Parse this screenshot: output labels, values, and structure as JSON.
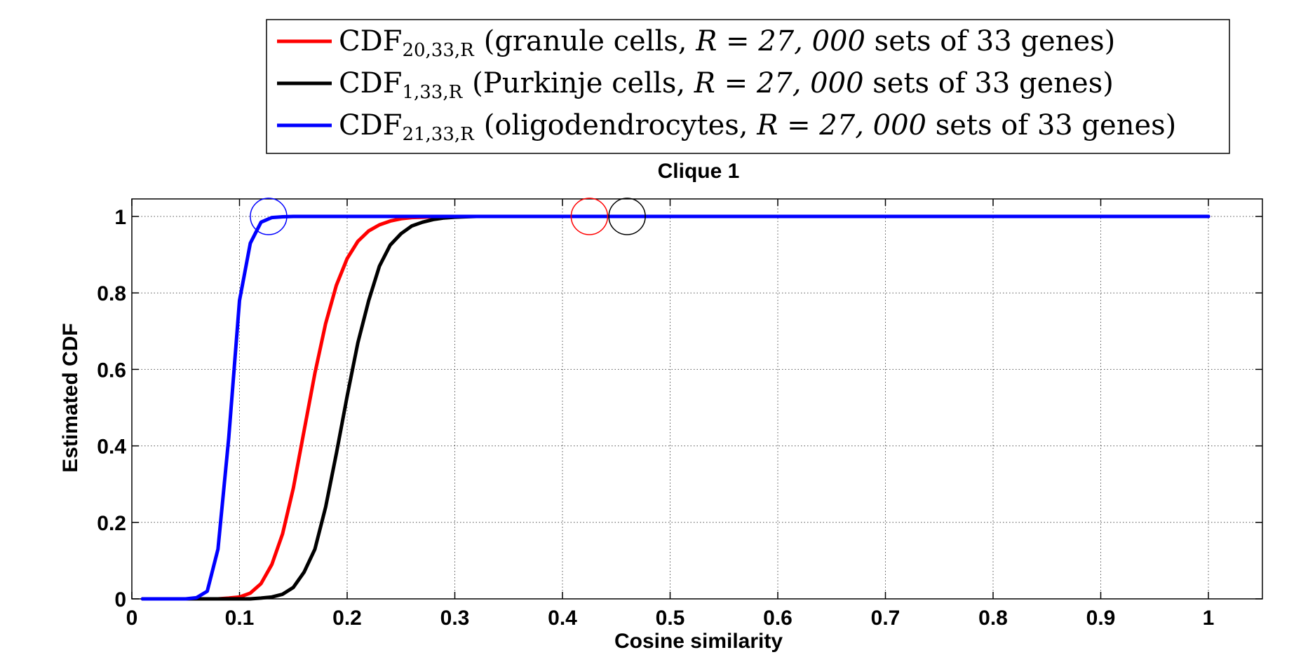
{
  "chart_data": {
    "type": "line",
    "title": "Clique 1",
    "xlabel": "Cosine similarity",
    "ylabel": "Estimated CDF",
    "xlim": [
      0,
      1.05
    ],
    "ylim": [
      0,
      1.05
    ],
    "xticks": [
      0,
      0.1,
      0.2,
      0.3,
      0.4,
      0.5,
      0.6,
      0.7,
      0.8,
      0.9,
      1
    ],
    "xtick_labels": [
      "0",
      "0.1",
      "0.2",
      "0.3",
      "0.4",
      "0.5",
      "0.6",
      "0.7",
      "0.8",
      "0.9",
      "1"
    ],
    "yticks": [
      0,
      0.2,
      0.4,
      0.6,
      0.8,
      1
    ],
    "ytick_labels": [
      "0",
      "0.2",
      "0.4",
      "0.6",
      "0.8",
      "1"
    ],
    "grid": true,
    "legend_position": "top-center",
    "series": [
      {
        "name": "granule",
        "color": "#ff0000",
        "legend": {
          "cdf": "CDF",
          "sub": "20,33,R",
          "open": "(granule cells,",
          "eq": "R = 27, 000",
          "close": "sets of 33 genes)"
        },
        "x": [
          0.01,
          0.08,
          0.09,
          0.1,
          0.11,
          0.12,
          0.13,
          0.14,
          0.15,
          0.16,
          0.17,
          0.18,
          0.19,
          0.2,
          0.21,
          0.22,
          0.23,
          0.24,
          0.25,
          0.26,
          0.27,
          0.28,
          0.3,
          0.33,
          0.4,
          1.0
        ],
        "y": [
          0,
          0,
          0.002,
          0.005,
          0.015,
          0.04,
          0.09,
          0.17,
          0.29,
          0.44,
          0.59,
          0.72,
          0.82,
          0.89,
          0.935,
          0.962,
          0.978,
          0.988,
          0.994,
          0.997,
          0.998,
          0.999,
          1,
          1,
          1,
          1
        ],
        "marker": {
          "x": 0.425,
          "y": 1
        }
      },
      {
        "name": "purkinje",
        "color": "#000000",
        "legend": {
          "cdf": "CDF",
          "sub": "1,33,R",
          "open": "(Purkinje cells,",
          "eq": "R = 27, 000",
          "close": "sets of 33 genes)"
        },
        "x": [
          0.01,
          0.11,
          0.12,
          0.13,
          0.14,
          0.15,
          0.16,
          0.17,
          0.18,
          0.19,
          0.2,
          0.21,
          0.22,
          0.23,
          0.24,
          0.25,
          0.26,
          0.27,
          0.28,
          0.29,
          0.3,
          0.31,
          0.32,
          0.34,
          0.37,
          0.4,
          1.0
        ],
        "y": [
          0,
          0,
          0.002,
          0.005,
          0.012,
          0.03,
          0.07,
          0.13,
          0.24,
          0.38,
          0.53,
          0.67,
          0.78,
          0.87,
          0.925,
          0.955,
          0.975,
          0.985,
          0.992,
          0.996,
          0.998,
          0.999,
          1,
          1,
          1,
          1,
          1
        ],
        "marker": {
          "x": 0.46,
          "y": 1
        }
      },
      {
        "name": "oligodendrocytes",
        "color": "#0000ff",
        "legend": {
          "cdf": "CDF",
          "sub": "21,33,R",
          "open": "(oligodendrocytes,",
          "eq": "R = 27, 000",
          "close": "sets of 33 genes)"
        },
        "x": [
          0.01,
          0.05,
          0.06,
          0.07,
          0.08,
          0.09,
          0.1,
          0.11,
          0.12,
          0.13,
          0.14,
          0.15,
          0.16,
          0.18,
          0.2,
          1.0
        ],
        "y": [
          0,
          0,
          0.003,
          0.02,
          0.13,
          0.42,
          0.78,
          0.93,
          0.985,
          0.997,
          0.999,
          1,
          1,
          1,
          1,
          1
        ],
        "marker": {
          "x": 0.127,
          "y": 1
        }
      }
    ]
  }
}
